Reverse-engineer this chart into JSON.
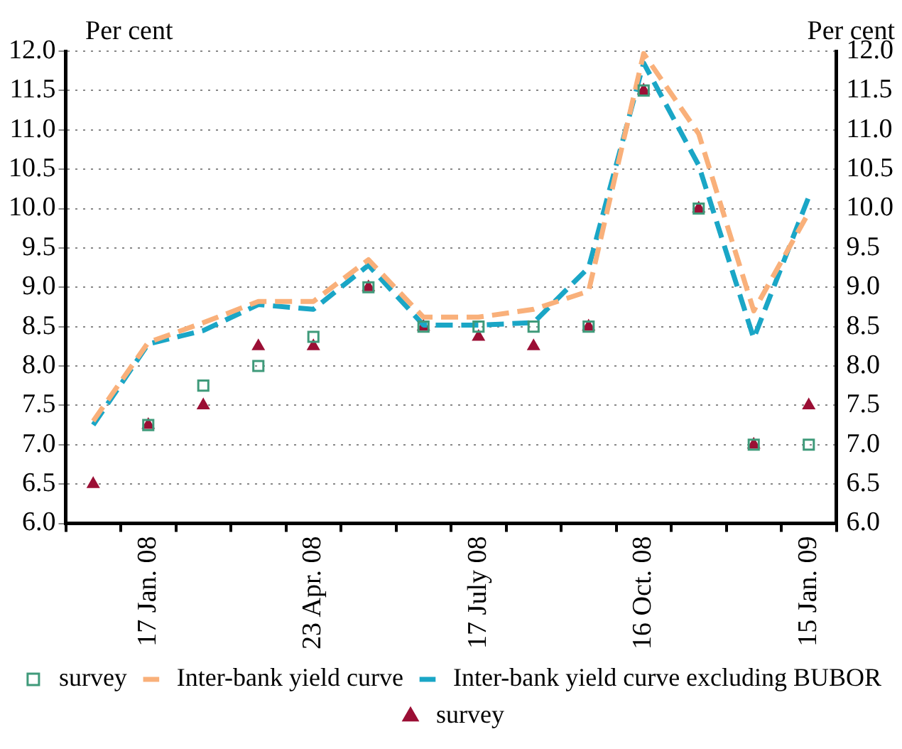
{
  "chart_data": {
    "type": "line",
    "ylabel": "Per cent",
    "y2label": "Per cent",
    "categories": [
      null,
      "17 Jan. 08",
      null,
      null,
      "23 Apr. 08",
      null,
      null,
      "17 July 08",
      null,
      null,
      "16 Oct. 08",
      null,
      null,
      "15 Jan. 09"
    ],
    "series": [
      {
        "name": "Inter-bank yield curve",
        "type": "line",
        "color": "#f9b07a",
        "line_style": "dashed",
        "marker": "none",
        "values": [
          7.3,
          8.3,
          8.55,
          8.82,
          8.82,
          9.35,
          8.62,
          8.62,
          8.72,
          8.95,
          11.97,
          10.95,
          8.7,
          9.95
        ]
      },
      {
        "name": "Inter-bank yield curve excluding BUBOR",
        "type": "line",
        "color": "#1aa6c6",
        "line_style": "dashed",
        "marker": "none",
        "values": [
          7.25,
          8.28,
          8.45,
          8.78,
          8.72,
          9.28,
          8.52,
          8.52,
          8.55,
          9.25,
          11.85,
          10.55,
          8.35,
          10.15
        ]
      },
      {
        "name": "survey",
        "type": "scatter",
        "color": "#9b0f35",
        "marker": "triangle",
        "values": [
          6.5,
          7.25,
          7.5,
          8.25,
          8.25,
          9.0,
          8.5,
          8.37,
          8.25,
          8.5,
          11.5,
          10.0,
          7.0,
          7.5
        ]
      },
      {
        "name": "survey",
        "type": "scatter",
        "color": "#3f9a7a",
        "marker": "square",
        "values": [
          null,
          7.25,
          7.75,
          8.0,
          8.37,
          9.0,
          8.5,
          8.5,
          8.5,
          8.5,
          11.5,
          10.0,
          7.0,
          7.0
        ]
      }
    ],
    "ylim": [
      6,
      12
    ],
    "yticks": [
      {
        "value": 6,
        "label": "6.0"
      },
      {
        "value": 6.5,
        "label": "6.5"
      },
      {
        "value": 7,
        "label": "7.0"
      },
      {
        "value": 7.5,
        "label": "7.5"
      },
      {
        "value": 8,
        "label": "8.0"
      },
      {
        "value": 8.5,
        "label": "8.5"
      },
      {
        "value": 9,
        "label": "9.0"
      },
      {
        "value": 9.5,
        "label": "9.5"
      },
      {
        "value": 10,
        "label": "10.0"
      },
      {
        "value": 10.5,
        "label": "10.5"
      },
      {
        "value": 11,
        "label": "11.0"
      },
      {
        "value": 11.5,
        "label": "11.5"
      },
      {
        "value": 12,
        "label": "12.0"
      }
    ],
    "y2lim": [
      6,
      12
    ],
    "y2ticks": [
      {
        "value": 6,
        "label": "6.0"
      },
      {
        "value": 6.5,
        "label": "6.5"
      },
      {
        "value": 7,
        "label": "7.0"
      },
      {
        "value": 7.5,
        "label": "7.5"
      },
      {
        "value": 8,
        "label": "8.0"
      },
      {
        "value": 8.5,
        "label": "8.5"
      },
      {
        "value": 9,
        "label": "9.0"
      },
      {
        "value": 9.5,
        "label": "9.5"
      },
      {
        "value": 10,
        "label": "10.0"
      },
      {
        "value": 10.5,
        "label": "10.5"
      },
      {
        "value": 11,
        "label": "11.0"
      },
      {
        "value": 11.5,
        "label": "11.5"
      },
      {
        "value": 12,
        "label": "12.0"
      }
    ],
    "grid": "y",
    "legend": "bottom"
  }
}
